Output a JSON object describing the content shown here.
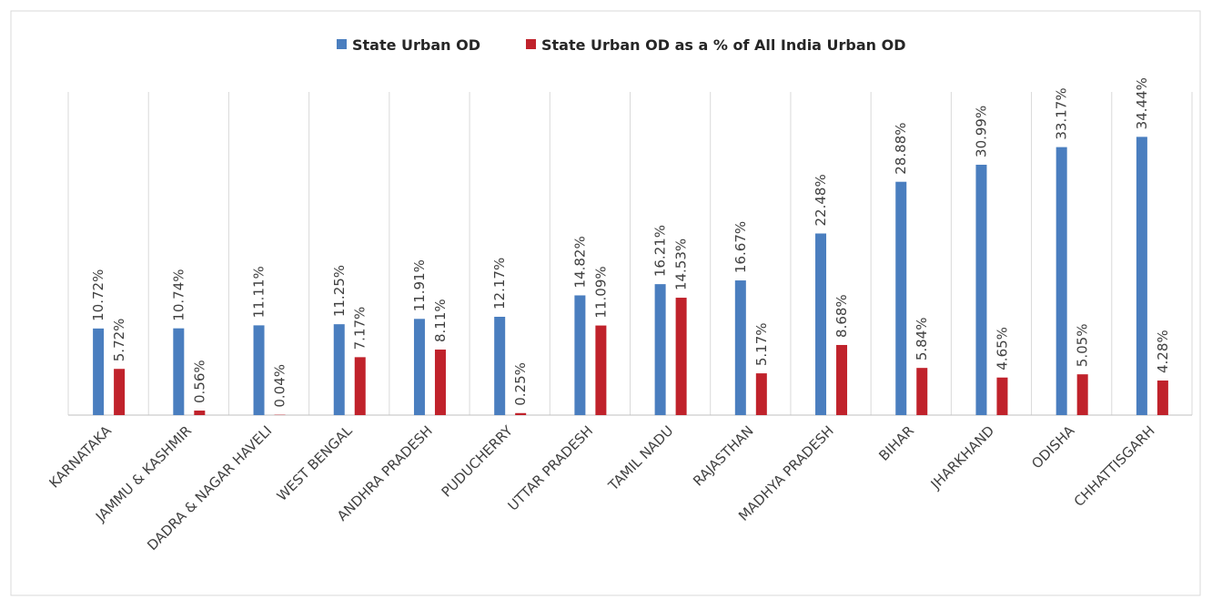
{
  "chart_data": {
    "type": "bar",
    "categories": [
      "KARNATAKA",
      "JAMMU & KASHMIR",
      "DADRA & NAGAR HAVELI",
      "WEST BENGAL",
      "ANDHRA PRADESH",
      "PUDUCHERRY",
      "UTTAR PRADESH",
      "TAMIL NADU",
      "RAJASTHAN",
      "MADHYA PRADESH",
      "BIHAR",
      "JHARKHAND",
      "ODISHA",
      "CHHATTISGARH"
    ],
    "series": [
      {
        "name": "State Urban OD",
        "color": "#4a7ebf",
        "values": [
          10.72,
          10.74,
          11.11,
          11.25,
          11.91,
          12.17,
          14.82,
          16.21,
          16.67,
          22.48,
          28.88,
          30.99,
          33.17,
          34.44
        ],
        "value_labels": [
          "10.72%",
          "10.74%",
          "11.11%",
          "11.25%",
          "11.91%",
          "12.17%",
          "14.82%",
          "16.21%",
          "16.67%",
          "22.48%",
          "28.88%",
          "30.99%",
          "33.17%",
          "34.44%"
        ]
      },
      {
        "name": "State Urban OD as a % of All India Urban OD",
        "color": "#c0222b",
        "values": [
          5.72,
          0.56,
          0.04,
          7.17,
          8.11,
          0.25,
          11.09,
          14.53,
          5.17,
          8.68,
          5.84,
          4.65,
          5.05,
          4.28
        ],
        "value_labels": [
          "5.72%",
          "0.56%",
          "0.04%",
          "7.17%",
          "8.11%",
          "0.25%",
          "11.09%",
          "14.53%",
          "5.17%",
          "8.68%",
          "5.84%",
          "4.65%",
          "5.05%",
          "4.28%"
        ]
      }
    ],
    "ylim": [
      0,
      40
    ],
    "grid": true,
    "legend": "top"
  }
}
